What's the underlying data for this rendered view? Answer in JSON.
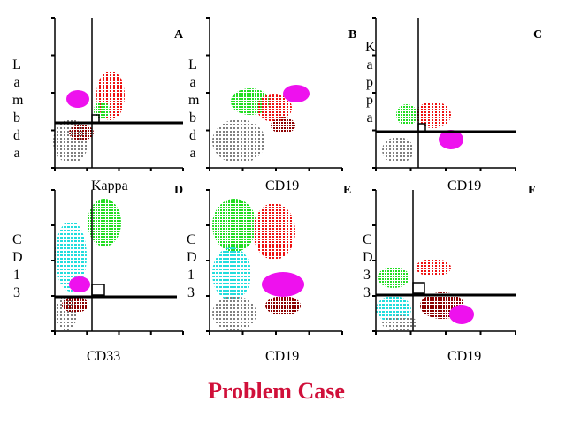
{
  "title": "Problem Case",
  "panels": [
    {
      "letter": "A",
      "y_label": "Lambda",
      "x_label": "Kappa"
    },
    {
      "letter": "B",
      "y_label": "Lambda",
      "x_label": "CD19"
    },
    {
      "letter": "C",
      "y_label": "Kappa",
      "x_label": "CD19"
    },
    {
      "letter": "D",
      "y_label": "CD13",
      "x_label": "CD33"
    },
    {
      "letter": "E",
      "y_label": "CD13",
      "x_label": "CD19"
    },
    {
      "letter": "F",
      "y_label": "CD33",
      "x_label": "CD19"
    }
  ]
}
